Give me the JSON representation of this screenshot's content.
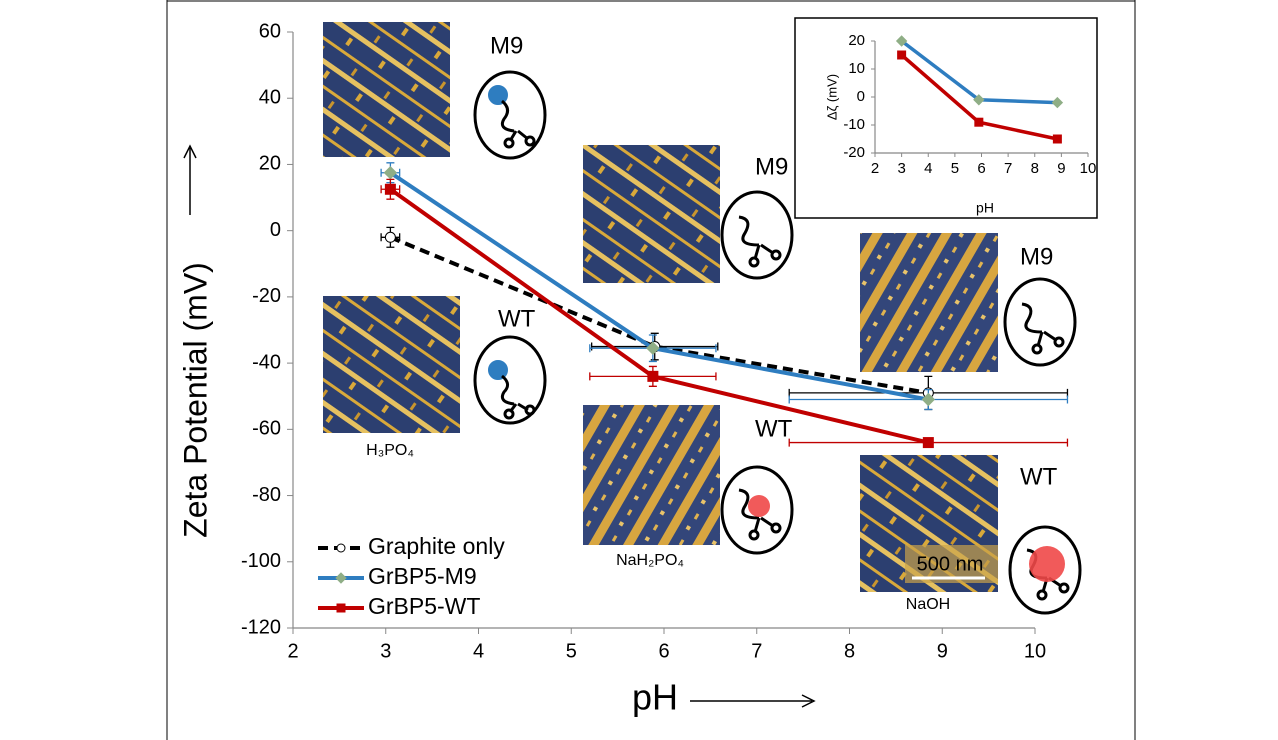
{
  "chart_data": [
    {
      "type": "line",
      "y_label": "Zeta Potential (mV)",
      "x_label": "pH",
      "xlim": [
        2,
        10
      ],
      "xticks": [
        2,
        3,
        4,
        5,
        6,
        7,
        8,
        9,
        10
      ],
      "ylim": [
        -120,
        60
      ],
      "yticks": [
        -120,
        -100,
        -80,
        -60,
        -40,
        -20,
        0,
        20,
        40,
        60
      ],
      "legend": "lower left",
      "series": [
        {
          "name": "Graphite only",
          "color": "#000000",
          "line_style": "dashed",
          "marker": "circle",
          "marker_color": "#ffffff",
          "x": [
            3.05,
            5.9,
            8.85
          ],
          "values": [
            -2,
            -35,
            -49
          ],
          "y_errors": [
            3,
            4,
            5
          ],
          "x_errors": [
            0.1,
            0.68,
            1.5
          ]
        },
        {
          "name": "GrBP5-M9",
          "color": "#2e7dc0",
          "line_style": "solid",
          "marker": "diamond",
          "marker_color": "#8fae86",
          "x": [
            3.05,
            5.88,
            8.85
          ],
          "values": [
            17.5,
            -35.5,
            -51
          ],
          "y_errors": [
            3,
            4,
            3
          ],
          "x_errors": [
            0.1,
            0.68,
            1.5
          ]
        },
        {
          "name": "GrBP5-WT",
          "color": "#c00000",
          "line_style": "solid",
          "marker": "square",
          "marker_color": "#c00000",
          "x": [
            3.05,
            5.88,
            8.85
          ],
          "values": [
            12.5,
            -44,
            -64
          ],
          "y_errors": [
            3,
            3,
            1
          ],
          "x_errors": [
            0.1,
            0.68,
            1.5
          ]
        }
      ],
      "annotations": [
        "M9",
        "M9",
        "M9",
        "WT",
        "WT",
        "WT",
        "H₃PO₄",
        "NaH₂PO₄",
        "NaOH",
        "500 nm"
      ]
    },
    {
      "type": "line",
      "y_label": "Δζ (mV)",
      "x_label": "pH",
      "xlim": [
        2,
        10
      ],
      "xticks": [
        2,
        3,
        4,
        5,
        6,
        7,
        8,
        9,
        10
      ],
      "ylim": [
        -20,
        20
      ],
      "yticks": [
        -20,
        -10,
        0,
        10,
        20
      ],
      "series": [
        {
          "color": "#2e7dc0",
          "marker": "diamond",
          "marker_color": "#8fae86",
          "x": [
            3,
            5.9,
            8.85
          ],
          "values": [
            20,
            -1,
            -2
          ]
        },
        {
          "color": "#c00000",
          "marker": "square",
          "marker_color": "#c00000",
          "x": [
            3,
            5.9,
            8.85
          ],
          "values": [
            15,
            -9,
            -15
          ]
        }
      ]
    }
  ]
}
